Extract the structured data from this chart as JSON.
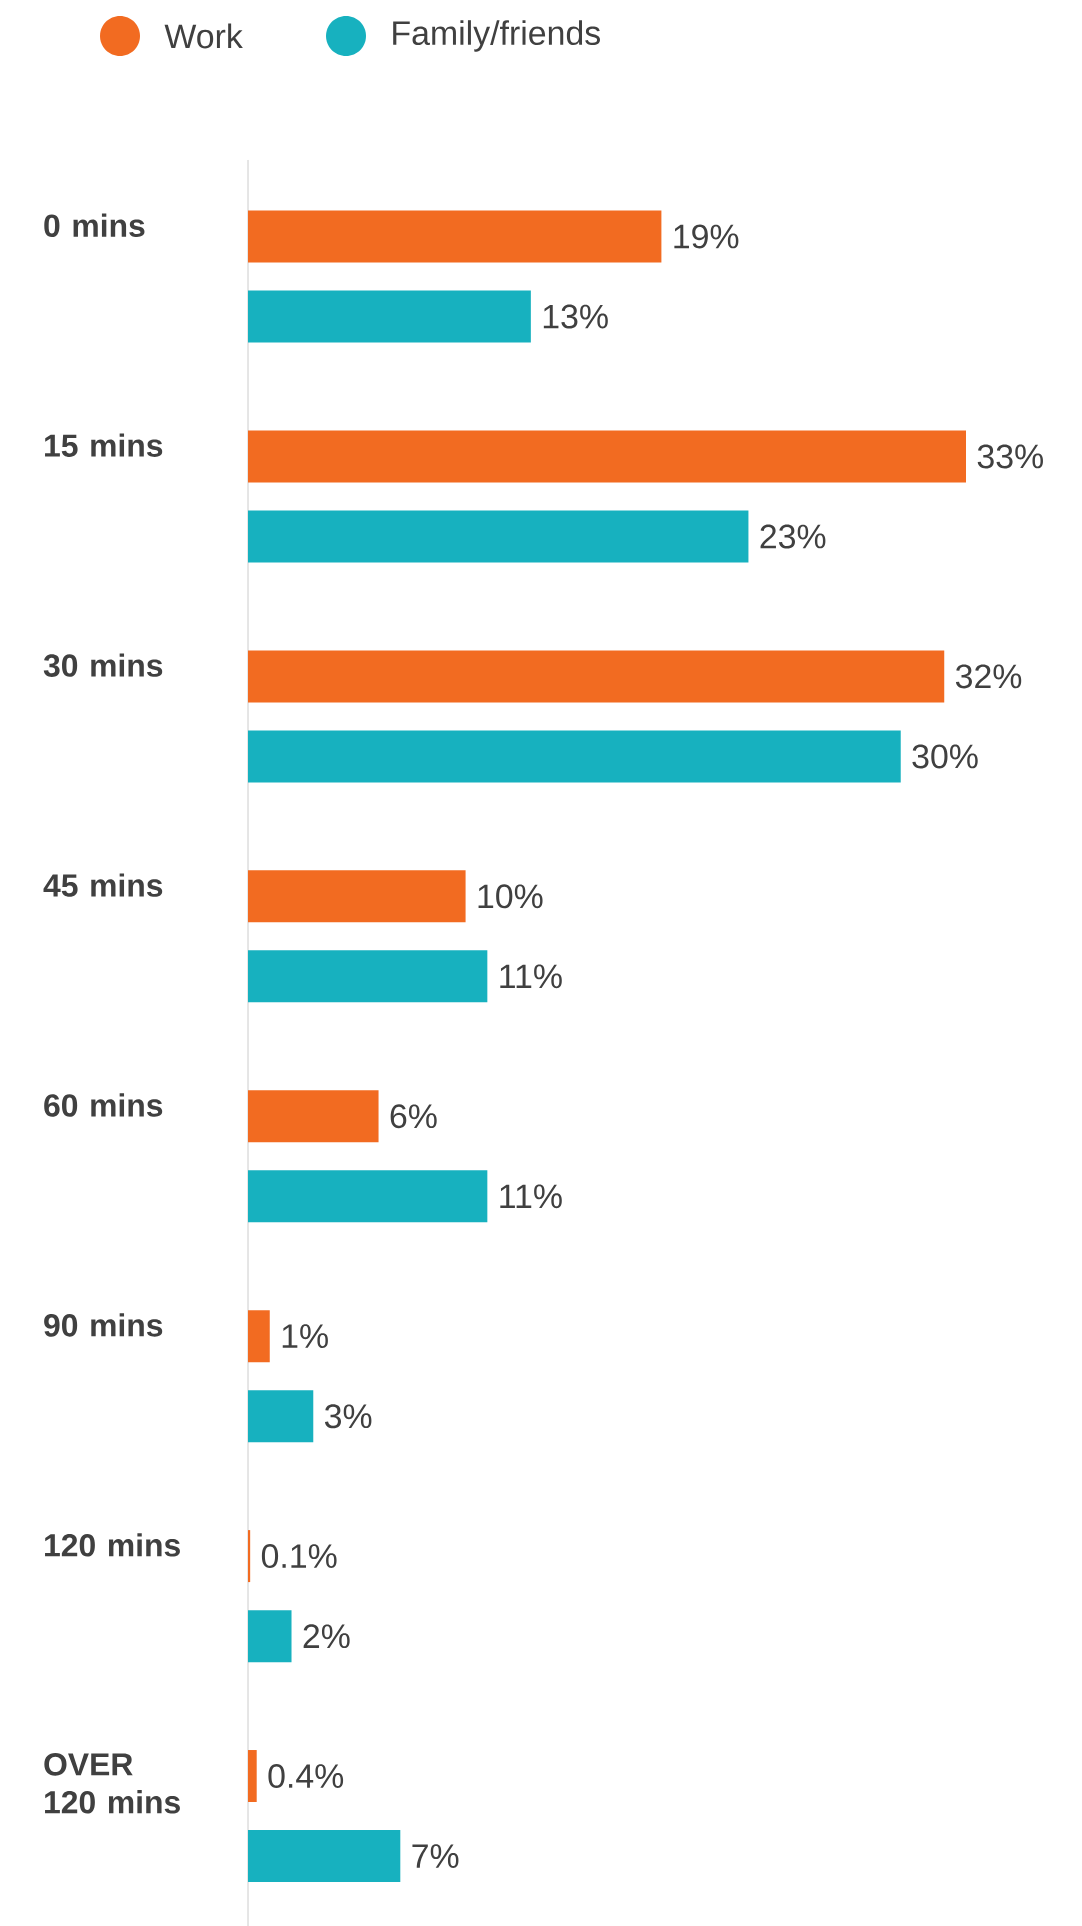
{
  "chart_data": {
    "type": "bar",
    "orientation": "horizontal",
    "legend": "top left",
    "categories": [
      "0 mins",
      "15 mins",
      "30 mins",
      "45 mins",
      "60 mins",
      "90 mins",
      "120 mins",
      "OVER 120 mins"
    ],
    "series": [
      {
        "name": "Work",
        "color": "#f26b21",
        "values": [
          19,
          33,
          32,
          10,
          6,
          1,
          0.1,
          0.4
        ],
        "value_labels": [
          "19%",
          "33%",
          "32%",
          "10%",
          "6%",
          "1%",
          "0.1%",
          "0.4%"
        ]
      },
      {
        "name": "Family/friends",
        "color": "#17b1bf",
        "values": [
          13,
          23,
          30,
          11,
          11,
          3,
          2,
          7
        ],
        "value_labels": [
          "13%",
          "23%",
          "30%",
          "11%",
          "11%",
          "3%",
          "2%",
          "7%"
        ]
      }
    ]
  }
}
